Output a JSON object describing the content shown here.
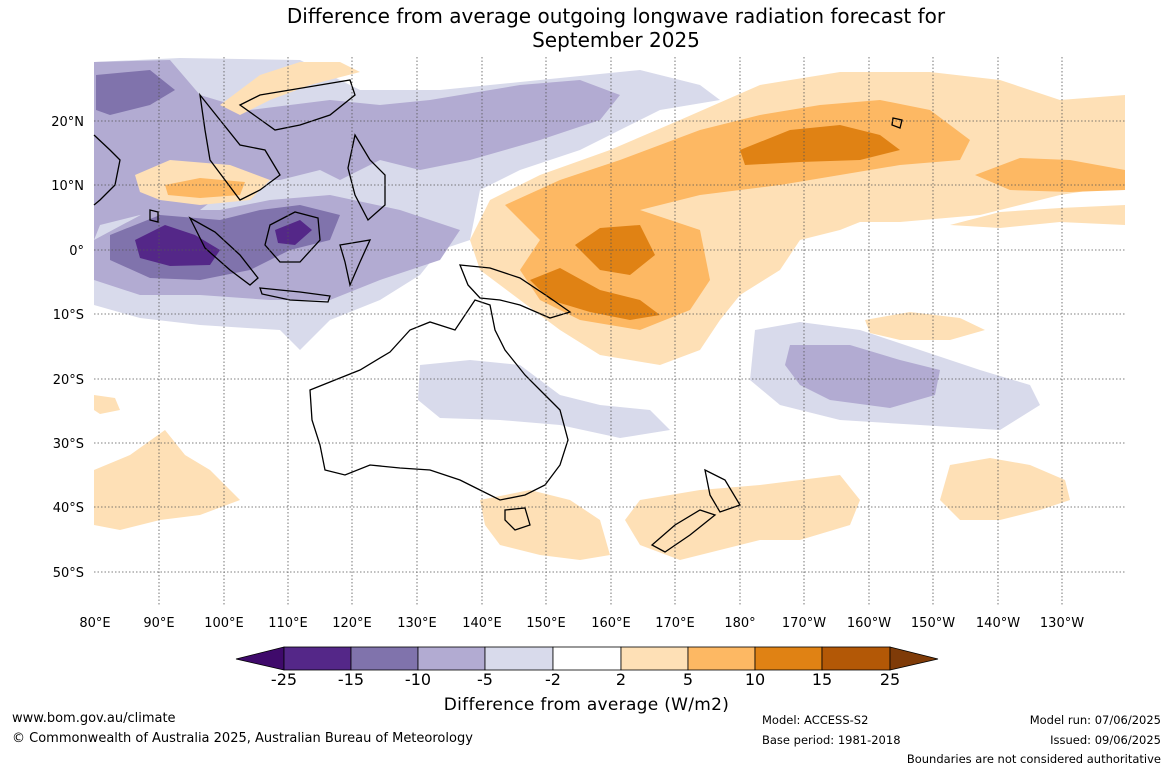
{
  "title": {
    "line1": "Difference from average outgoing longwave radiation forecast for",
    "line2": "September 2025"
  },
  "map": {
    "lon_labels": [
      "80°E",
      "90°E",
      "100°E",
      "110°E",
      "120°E",
      "130°E",
      "140°E",
      "150°E",
      "160°E",
      "170°E",
      "180°",
      "170°W",
      "160°W",
      "150°W",
      "140°W",
      "130°W"
    ],
    "lat_labels": [
      "20°N",
      "10°N",
      "0°",
      "10°S",
      "20°S",
      "30°S",
      "40°S",
      "50°S"
    ],
    "colors": {
      "c_neg25": "#3f0a6b",
      "c_neg15": "#542788",
      "c_neg10": "#8073ac",
      "c_neg5": "#b2abd2",
      "c_neg2": "#d8daeb",
      "c_zero": "#ffffff",
      "c_pos2": "#fee0b6",
      "c_pos5": "#fdb863",
      "c_pos10": "#e08214",
      "c_pos15": "#b35806",
      "c_pos25": "#7f3b08"
    }
  },
  "colorbar": {
    "ticks": [
      "-25",
      "-15",
      "-10",
      "-5",
      "-2",
      "2",
      "5",
      "10",
      "15",
      "25"
    ],
    "label": "Difference from average (W/m2)"
  },
  "footer": {
    "website": "www.bom.gov.au/climate",
    "copyright": "© Commonwealth of Australia 2025, Australian Bureau of Meteorology",
    "model": "Model: ACCESS-S2",
    "base_period": "Base period: 1981-2018",
    "model_run": "Model run: 07/06/2025",
    "issued": "Issued: 09/06/2025",
    "boundaries": "Boundaries are not considered authoritative"
  }
}
